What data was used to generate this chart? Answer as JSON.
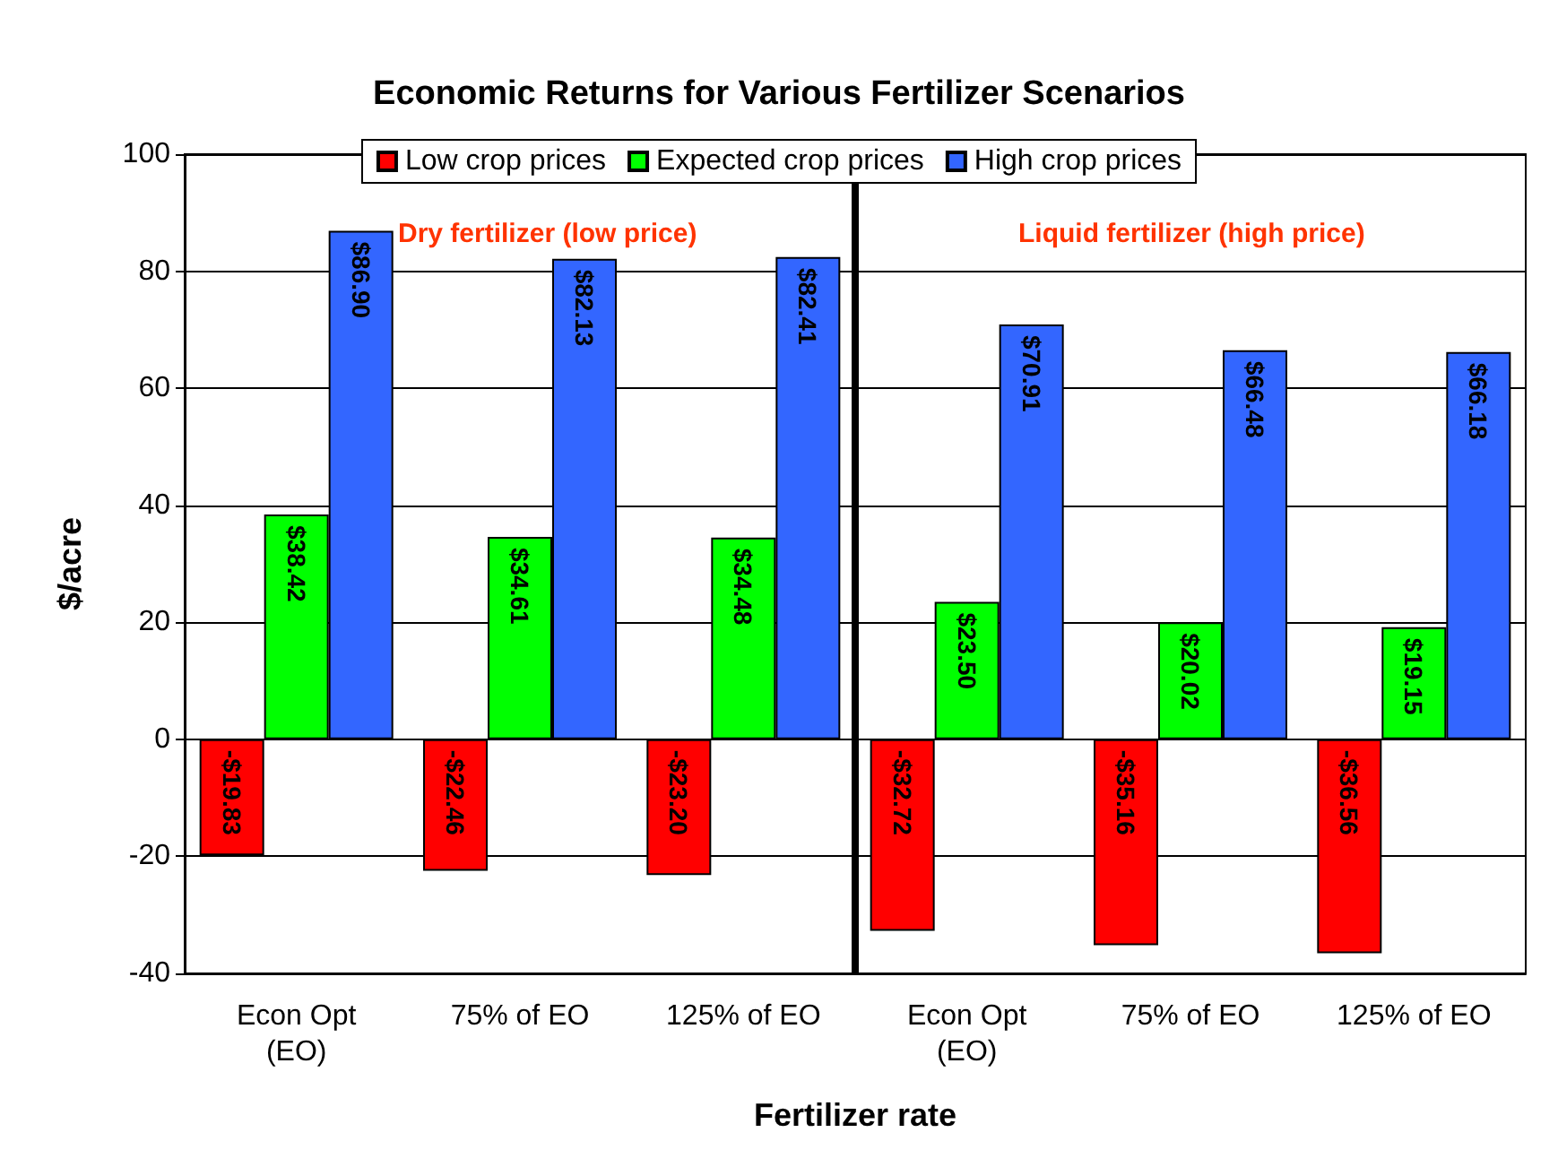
{
  "chart_data": {
    "type": "bar",
    "title": "Economic Returns for Various Fertilizer Scenarios",
    "xlabel": "Fertilizer rate",
    "ylabel": "$/acre",
    "categories": [
      "Econ Opt\n(EO)",
      "75% of EO",
      "125% of EO",
      "Econ Opt\n(EO)",
      "75% of EO",
      "125% of EO"
    ],
    "series": [
      {
        "name": "Low crop prices",
        "color": "#ff0000",
        "values": [
          -19.83,
          -22.46,
          -23.2,
          -32.72,
          -35.16,
          -36.56
        ],
        "value_labels": [
          "-$19.83",
          "-$22.46",
          "-$23.20",
          "-$32.72",
          "-$35.16",
          "-$36.56"
        ]
      },
      {
        "name": "Expected crop prices",
        "color": "#00ff00",
        "values": [
          38.42,
          34.61,
          34.48,
          23.5,
          20.02,
          19.15
        ],
        "value_labels": [
          "$38.42",
          "$34.61",
          "$34.48",
          "$23.50",
          "$20.02",
          "$19.15"
        ]
      },
      {
        "name": "High crop prices",
        "color": "#3366ff",
        "values": [
          86.9,
          82.13,
          82.41,
          70.91,
          66.48,
          66.18
        ],
        "value_labels": [
          "$86.90",
          "$82.13",
          "$82.41",
          "$70.91",
          "$66.48",
          "$66.18"
        ]
      }
    ],
    "annotations": [
      "Dry fertilizer (low price)",
      "Liquid fertilizer (high price)"
    ],
    "ylim": [
      -40,
      100
    ],
    "yticks": [
      -40,
      -20,
      0,
      20,
      40,
      60,
      80,
      100
    ],
    "grid": "y",
    "legend": "top"
  }
}
